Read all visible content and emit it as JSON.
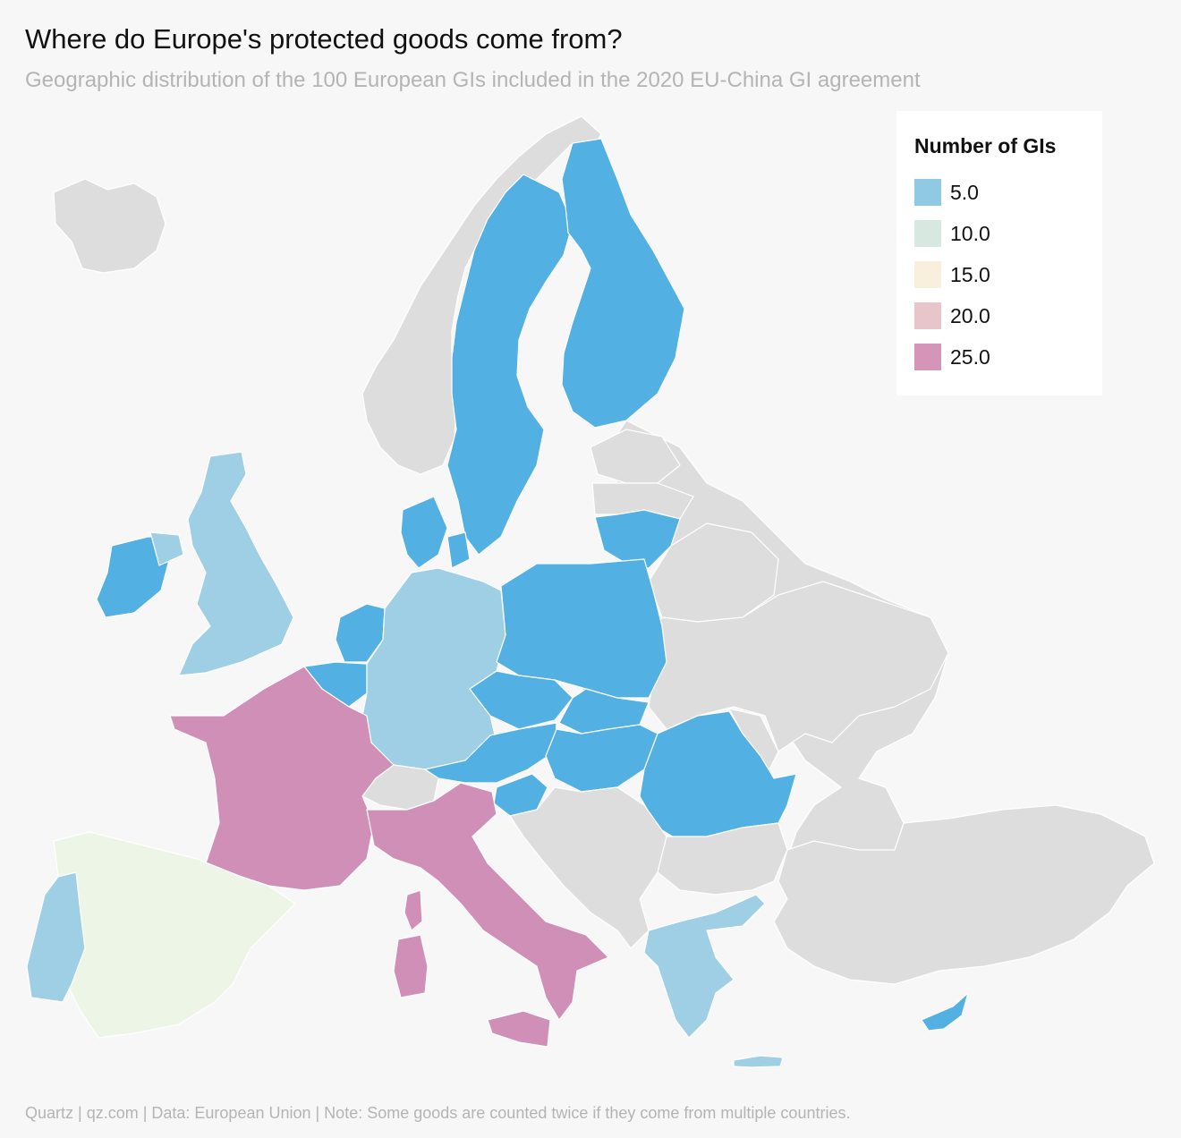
{
  "title": "Where do Europe's protected goods come from?",
  "subtitle": "Geographic distribution of the 100 European GIs included in the 2020 EU-China GI agreement",
  "footer": "Quartz | qz.com | Data: European Union | Note: Some goods are counted twice if they come from multiple countries.",
  "colors": {
    "background": "#f7f7f7",
    "no_data": "#dddddd",
    "scale_5": "#8fc9e3",
    "scale_10": "#d6e8e0",
    "scale_15": "#f8f0dc",
    "scale_20": "#e8c4cb",
    "scale_25": "#d495b8",
    "bright_blue": "#52b0e3",
    "light_blue": "#9ecfe4",
    "pale_green": "#edf6e6",
    "magenta": "#d08fb6"
  },
  "legend": {
    "title": "Number of GIs",
    "items": [
      {
        "label": "5.0",
        "color": "#8fc9e3"
      },
      {
        "label": "10.0",
        "color": "#d6e8e0"
      },
      {
        "label": "15.0",
        "color": "#f8f0dc"
      },
      {
        "label": "20.0",
        "color": "#e8c4cb"
      },
      {
        "label": "25.0",
        "color": "#d495b8"
      }
    ]
  },
  "regions": [
    {
      "id": "iceland",
      "fill": "no_data"
    },
    {
      "id": "norway",
      "fill": "no_data"
    },
    {
      "id": "sweden",
      "fill": "bright_blue"
    },
    {
      "id": "finland",
      "fill": "bright_blue"
    },
    {
      "id": "estonia",
      "fill": "no_data"
    },
    {
      "id": "latvia",
      "fill": "no_data"
    },
    {
      "id": "lithuania",
      "fill": "bright_blue"
    },
    {
      "id": "russia",
      "fill": "no_data"
    },
    {
      "id": "belarus",
      "fill": "no_data"
    },
    {
      "id": "ukraine",
      "fill": "no_data"
    },
    {
      "id": "moldova",
      "fill": "no_data"
    },
    {
      "id": "ireland",
      "fill": "bright_blue"
    },
    {
      "id": "united-kingdom",
      "fill": "light_blue"
    },
    {
      "id": "denmark",
      "fill": "bright_blue"
    },
    {
      "id": "netherlands",
      "fill": "bright_blue"
    },
    {
      "id": "belgium",
      "fill": "bright_blue"
    },
    {
      "id": "germany",
      "fill": "light_blue"
    },
    {
      "id": "poland",
      "fill": "bright_blue"
    },
    {
      "id": "czechia",
      "fill": "bright_blue"
    },
    {
      "id": "slovakia",
      "fill": "bright_blue"
    },
    {
      "id": "austria",
      "fill": "bright_blue"
    },
    {
      "id": "hungary",
      "fill": "bright_blue"
    },
    {
      "id": "slovenia",
      "fill": "bright_blue"
    },
    {
      "id": "romania",
      "fill": "bright_blue"
    },
    {
      "id": "switzerland",
      "fill": "no_data"
    },
    {
      "id": "france",
      "fill": "magenta"
    },
    {
      "id": "italy",
      "fill": "magenta"
    },
    {
      "id": "corsica",
      "fill": "magenta"
    },
    {
      "id": "sardinia",
      "fill": "magenta"
    },
    {
      "id": "sicily",
      "fill": "magenta"
    },
    {
      "id": "spain",
      "fill": "pale_green"
    },
    {
      "id": "portugal",
      "fill": "light_blue"
    },
    {
      "id": "balkans",
      "fill": "no_data"
    },
    {
      "id": "bulgaria",
      "fill": "no_data"
    },
    {
      "id": "greece",
      "fill": "light_blue"
    },
    {
      "id": "crete",
      "fill": "light_blue"
    },
    {
      "id": "turkey",
      "fill": "no_data"
    },
    {
      "id": "cyprus",
      "fill": "bright_blue"
    }
  ]
}
